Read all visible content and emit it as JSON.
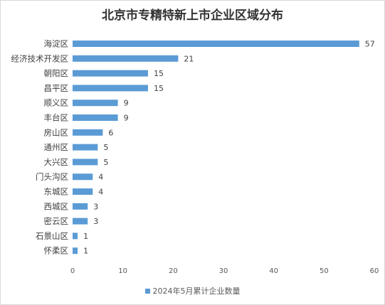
{
  "chart_data": {
    "type": "bar",
    "orientation": "horizontal",
    "title": "北京市专精特新上市企业区域分布",
    "categories": [
      "海淀区",
      "经济技术开发区",
      "朝阳区",
      "昌平区",
      "顺义区",
      "丰台区",
      "房山区",
      "通州区",
      "大兴区",
      "门头沟区",
      "东城区",
      "西城区",
      "密云区",
      "石景山区",
      "怀柔区"
    ],
    "series": [
      {
        "name": "2024年5月累计企业数量",
        "values": [
          57,
          21,
          15,
          15,
          9,
          9,
          6,
          5,
          5,
          4,
          4,
          3,
          3,
          1,
          1
        ]
      }
    ],
    "xlim": [
      0,
      60
    ],
    "xticks": [
      0,
      10,
      20,
      30,
      40,
      50,
      60
    ],
    "grid": false,
    "legend": "bottom",
    "bar_color": "#5b9bd5"
  }
}
